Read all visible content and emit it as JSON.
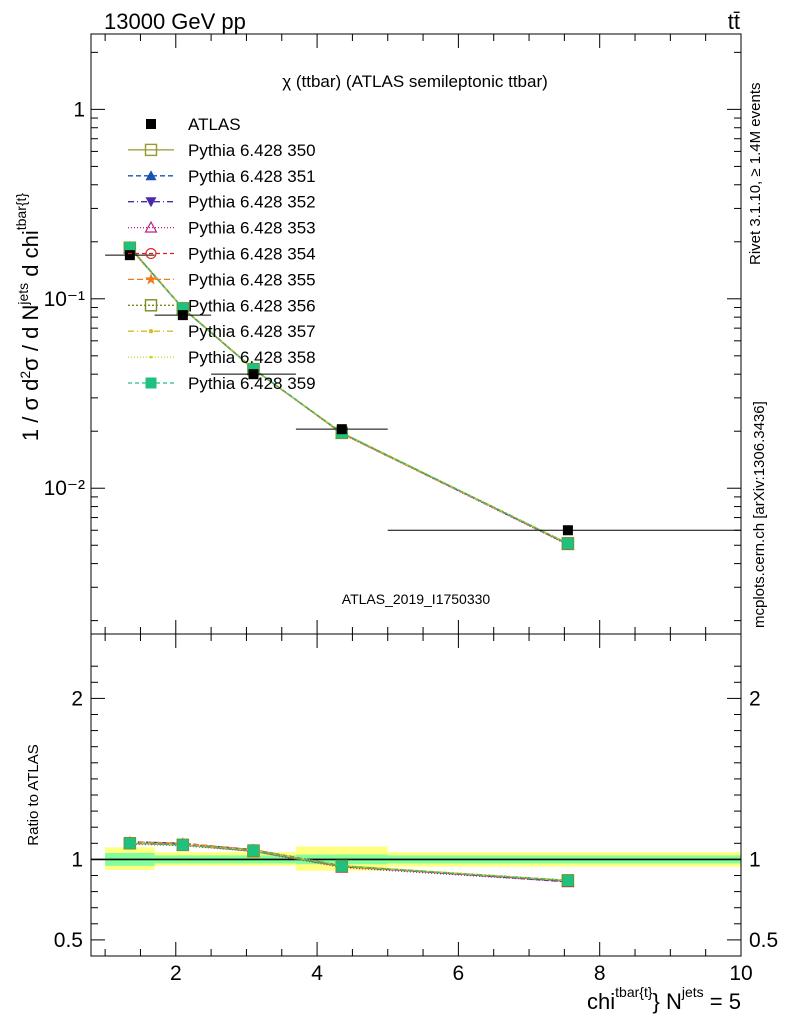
{
  "header": {
    "energy_label": "13000 GeV pp",
    "process_label": "tt̄"
  },
  "side_labels": {
    "rivet": "Rivet 3.1.10, ≥ 1.4M events",
    "mcplots": "mcplots.cern.ch [arXiv:1306.3436]"
  },
  "watermark": "ATLAS_2019_I1750330",
  "colors": {
    "data": "#000000",
    "band_inner": "#80ff9a",
    "band_outer": "#ffff80"
  },
  "chart_data": [
    {
      "type": "line",
      "panel": "main",
      "title": "χ (ttbar) (ATLAS semileptonic ttbar)",
      "ylabel": "1 / σ d²σ / d N^jets d chi^tbar{t}",
      "yscale": "log",
      "ylim": [
        0.0017,
        2.5
      ],
      "xlim": [
        0.8,
        10
      ],
      "y_ticks": [
        {
          "value": 1,
          "label": "1"
        },
        {
          "value": 0.1,
          "label": "10⁻¹"
        },
        {
          "value": 0.01,
          "label": "10⁻²"
        }
      ],
      "legend_position": "top-left",
      "x": [
        1.35,
        2.1,
        3.1,
        4.35,
        7.55
      ],
      "x_err": [
        [
          1.0,
          1.7
        ],
        [
          1.7,
          2.5
        ],
        [
          2.5,
          3.7
        ],
        [
          3.7,
          5.0
        ],
        [
          5.0,
          10.0
        ]
      ],
      "data": {
        "name": "ATLAS",
        "values": [
          0.17,
          0.082,
          0.04,
          0.0205,
          0.006
        ]
      },
      "series": [
        {
          "name": "Pythia 6.428 350",
          "color": "#9a9a2a",
          "dash": "",
          "marker": "square-open",
          "values": [
            0.186,
            0.089,
            0.0425,
            0.0196,
            0.00508
          ]
        },
        {
          "name": "Pythia 6.428 351",
          "color": "#1a52b0",
          "dash": "5,3",
          "marker": "triangle-up",
          "values": [
            0.187,
            0.089,
            0.0427,
            0.0195,
            0.00505
          ]
        },
        {
          "name": "Pythia 6.428 352",
          "color": "#4a2aa8",
          "dash": "6,3,1,3",
          "marker": "triangle-down",
          "values": [
            0.186,
            0.0893,
            0.0425,
            0.0196,
            0.0051
          ]
        },
        {
          "name": "Pythia 6.428 353",
          "color": "#c02080",
          "dash": "1,2",
          "marker": "triangle-open",
          "values": [
            0.185,
            0.089,
            0.0426,
            0.0194,
            0.00503
          ]
        },
        {
          "name": "Pythia 6.428 354",
          "color": "#e02020",
          "dash": "4,3",
          "marker": "circle-open",
          "values": [
            0.187,
            0.0894,
            0.0427,
            0.0196,
            0.00506
          ]
        },
        {
          "name": "Pythia 6.428 355",
          "color": "#f07a20",
          "dash": "6,3",
          "marker": "star",
          "values": [
            0.188,
            0.0895,
            0.0428,
            0.0194,
            0.00508
          ]
        },
        {
          "name": "Pythia 6.428 356",
          "color": "#7a8a20",
          "dash": "2,2",
          "marker": "square-open",
          "values": [
            0.186,
            0.089,
            0.0425,
            0.0196,
            0.00512
          ]
        },
        {
          "name": "Pythia 6.428 357",
          "color": "#d0c020",
          "dash": "6,3,1,3",
          "marker": "dot",
          "values": [
            0.186,
            0.089,
            0.0426,
            0.0196,
            0.0051
          ]
        },
        {
          "name": "Pythia 6.428 358",
          "color": "#c8d820",
          "dash": "1,2",
          "marker": "dot-small",
          "values": [
            0.187,
            0.0892,
            0.0427,
            0.0197,
            0.00511
          ]
        },
        {
          "name": "Pythia 6.428 359",
          "color": "#20c080",
          "dash": "4,3",
          "marker": "square",
          "values": [
            0.187,
            0.0891,
            0.0426,
            0.0196,
            0.00509
          ]
        }
      ]
    },
    {
      "type": "line",
      "panel": "ratio",
      "ylabel": "Ratio to ATLAS",
      "xlabel": "chi^tbar{t} N^jets = 5",
      "ylim": [
        0.4,
        2.4
      ],
      "xlim": [
        0.8,
        10
      ],
      "x_ticks": [
        2,
        4,
        6,
        8,
        10
      ],
      "y_ticks": [
        0.5,
        1,
        2
      ],
      "reference": 1,
      "bands": {
        "edges": [
          [
            1.0,
            1.7
          ],
          [
            1.7,
            3.7
          ],
          [
            3.7,
            5.0
          ],
          [
            5.0,
            10.0
          ]
        ],
        "inner": [
          [
            0.96,
            1.04
          ],
          [
            0.975,
            1.025
          ],
          [
            0.97,
            1.03
          ],
          [
            0.975,
            1.025
          ]
        ],
        "outer": [
          [
            0.935,
            1.075
          ],
          [
            0.96,
            1.045
          ],
          [
            0.93,
            1.08
          ],
          [
            0.955,
            1.045
          ]
        ]
      },
      "x": [
        1.35,
        2.1,
        3.1,
        4.35,
        7.55
      ],
      "series_values": [
        [
          1.1,
          1.09,
          1.05,
          0.955,
          0.865
        ],
        [
          1.11,
          1.1,
          1.06,
          0.96,
          0.86
        ],
        [
          1.1,
          1.09,
          1.055,
          0.955,
          0.865
        ],
        [
          1.095,
          1.085,
          1.05,
          0.95,
          0.86
        ],
        [
          1.1,
          1.095,
          1.06,
          0.96,
          0.865
        ],
        [
          1.11,
          1.1,
          1.06,
          0.955,
          0.87
        ],
        [
          1.1,
          1.09,
          1.055,
          0.96,
          0.87
        ],
        [
          1.1,
          1.09,
          1.055,
          0.96,
          0.868
        ],
        [
          1.1,
          1.092,
          1.057,
          0.962,
          0.87
        ],
        [
          1.1,
          1.09,
          1.055,
          0.958,
          0.868
        ]
      ]
    }
  ]
}
